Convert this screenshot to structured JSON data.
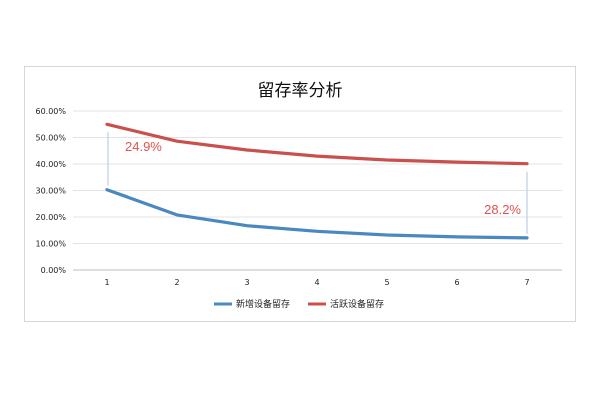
{
  "chart_data": {
    "type": "line",
    "title": "留存率分析",
    "x": [
      "1",
      "2",
      "3",
      "4",
      "5",
      "6",
      "7"
    ],
    "y_ticks": [
      "0.00%",
      "10.00%",
      "20.00%",
      "30.00%",
      "40.00%",
      "50.00%",
      "60.00%"
    ],
    "ylim": [
      0,
      60
    ],
    "grid": true,
    "legend_position": "bottom",
    "series": [
      {
        "name": "新增设备留存",
        "color": "#4a88c0",
        "values": [
          30.3,
          20.8,
          16.7,
          14.6,
          13.2,
          12.5,
          12.1
        ]
      },
      {
        "name": "活跃设备留存",
        "color": "#c9504d",
        "values": [
          55.0,
          48.6,
          45.3,
          43.0,
          41.5,
          40.7,
          40.1
        ]
      }
    ],
    "annotations": [
      {
        "text": "24.9%",
        "x_index": 0
      },
      {
        "text": "28.2%",
        "x_index": 6
      }
    ]
  }
}
